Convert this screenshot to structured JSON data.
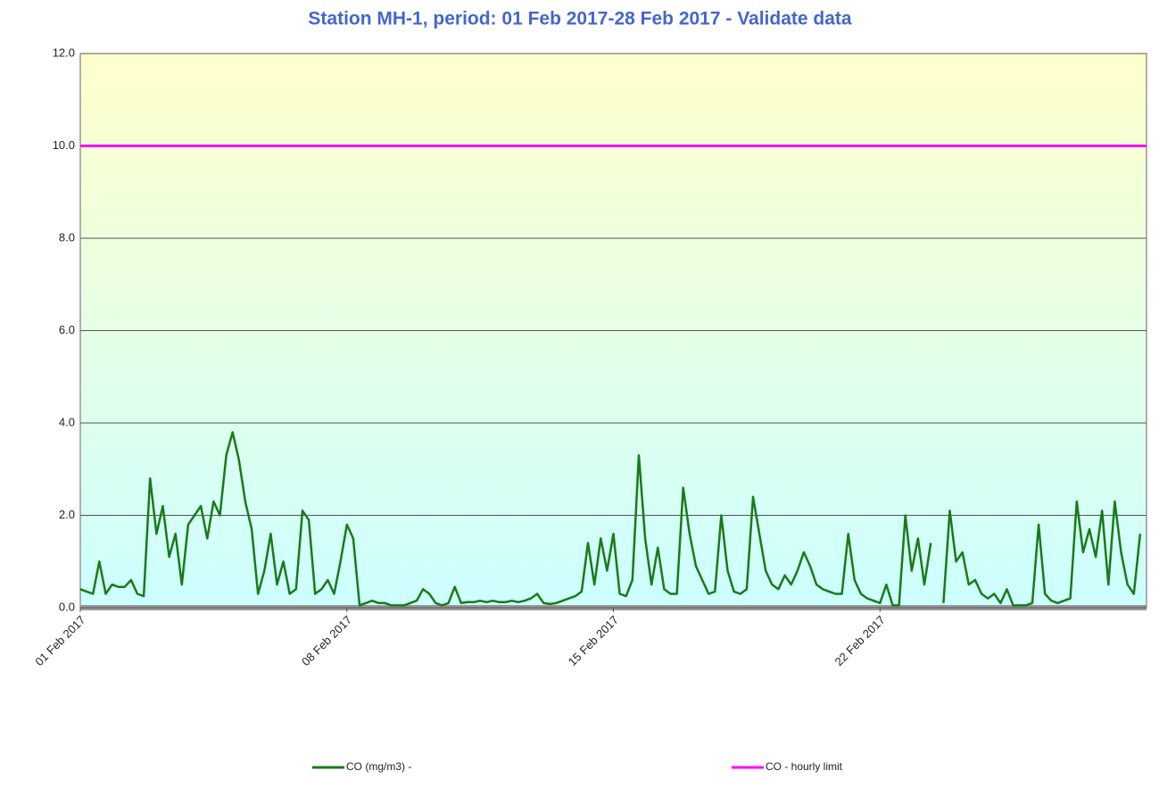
{
  "chart_data": {
    "type": "line",
    "title": "Station MH-1, period: 01 Feb 2017-28 Feb 2017 - Validate data",
    "categories": [
      "01 Feb 2017",
      null,
      null,
      null,
      null,
      null,
      null,
      null,
      null,
      null,
      null,
      null,
      null,
      null,
      null,
      null,
      null,
      null,
      null,
      null,
      null,
      null,
      null,
      null,
      null,
      null,
      null,
      null,
      null,
      null,
      null,
      null,
      null,
      null,
      null,
      null,
      null,
      null,
      null,
      null,
      null,
      null,
      "08 Feb 2017",
      null,
      null,
      null,
      null,
      null,
      null,
      null,
      null,
      null,
      null,
      null,
      null,
      null,
      null,
      null,
      null,
      null,
      null,
      null,
      null,
      null,
      null,
      null,
      null,
      null,
      null,
      null,
      null,
      null,
      null,
      null,
      null,
      null,
      null,
      null,
      null,
      null,
      null,
      null,
      null,
      null,
      "15 Feb 2017",
      null,
      null,
      null,
      null,
      null,
      null,
      null,
      null,
      null,
      null,
      null,
      null,
      null,
      null,
      null,
      null,
      null,
      null,
      null,
      null,
      null,
      null,
      null,
      null,
      null,
      null,
      null,
      null,
      null,
      null,
      null,
      null,
      null,
      null,
      null,
      null,
      null,
      null,
      null,
      null,
      null,
      "22 Feb 2017",
      null,
      null,
      null,
      null,
      null,
      null,
      null,
      null,
      null,
      null,
      null,
      null,
      null,
      null,
      null,
      null,
      null,
      null,
      null,
      null,
      null,
      null,
      null,
      null,
      null,
      null,
      null,
      null,
      null,
      null,
      null,
      null,
      null,
      null,
      null,
      null,
      null,
      null,
      null,
      null,
      null
    ],
    "series": [
      {
        "name": "CO (mg/m3) -",
        "color": "#1a7a1a",
        "values": [
          0.4,
          0.35,
          0.3,
          1.0,
          0.3,
          0.5,
          0.45,
          0.45,
          0.6,
          0.3,
          0.25,
          2.8,
          1.6,
          2.2,
          1.1,
          1.6,
          0.5,
          1.8,
          2.0,
          2.2,
          1.5,
          2.3,
          2.0,
          3.3,
          3.8,
          3.2,
          2.3,
          1.7,
          0.3,
          0.8,
          1.6,
          0.5,
          1.0,
          0.3,
          0.4,
          2.1,
          1.9,
          0.3,
          0.4,
          0.6,
          0.3,
          1.0,
          1.8,
          1.5,
          0.05,
          0.1,
          0.15,
          0.1,
          0.1,
          0.05,
          0.05,
          0.05,
          0.1,
          0.15,
          0.4,
          0.3,
          0.1,
          0.05,
          0.1,
          0.45,
          0.1,
          0.12,
          0.12,
          0.15,
          0.12,
          0.15,
          0.12,
          0.12,
          0.15,
          0.12,
          0.15,
          0.2,
          0.3,
          0.1,
          0.08,
          0.1,
          0.15,
          0.2,
          0.25,
          0.35,
          1.4,
          0.5,
          1.5,
          0.8,
          1.6,
          0.3,
          0.25,
          0.6,
          3.3,
          1.5,
          0.5,
          1.3,
          0.4,
          0.3,
          0.3,
          2.6,
          1.6,
          0.9,
          0.6,
          0.3,
          0.35,
          2.0,
          0.8,
          0.35,
          0.3,
          0.4,
          2.4,
          1.6,
          0.8,
          0.5,
          0.4,
          0.7,
          0.5,
          0.8,
          1.2,
          0.9,
          0.5,
          0.4,
          0.35,
          0.3,
          0.3,
          1.6,
          0.6,
          0.3,
          0.2,
          0.15,
          0.1,
          0.5,
          0.05,
          0.05,
          2.0,
          0.8,
          1.5,
          0.5,
          1.4,
          null,
          0.1,
          2.1,
          1.0,
          1.2,
          0.5,
          0.6,
          0.3,
          0.2,
          0.3,
          0.1,
          0.4,
          0.05,
          0.05,
          0.05,
          0.1,
          1.8,
          0.3,
          0.15,
          0.1,
          0.15,
          0.2,
          2.3,
          1.2,
          1.7,
          1.1,
          2.1,
          0.5,
          2.3,
          1.2,
          0.5,
          0.3,
          1.6
        ]
      }
    ],
    "reference_lines": [
      {
        "name": "CO - hourly limit",
        "color": "#ff00ff",
        "value": 10
      }
    ],
    "ylim": [
      0,
      12
    ],
    "yticks": [
      {
        "value": 0,
        "label": "0.0"
      },
      {
        "value": 2,
        "label": "2.0"
      },
      {
        "value": 4,
        "label": "4.0"
      },
      {
        "value": 6,
        "label": "6.0"
      },
      {
        "value": 8,
        "label": "8.0"
      },
      {
        "value": 10,
        "label": "10.0"
      },
      {
        "value": 12,
        "label": "12.0"
      }
    ],
    "grid": true
  }
}
